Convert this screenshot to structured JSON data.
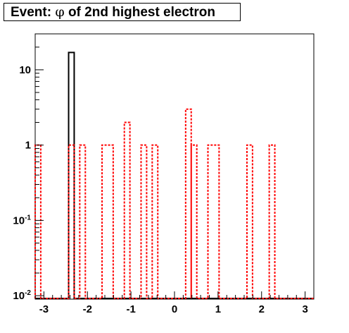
{
  "title": {
    "prefix": "Event: ",
    "symbol": "φ",
    "suffix": " of 2nd highest electron"
  },
  "chart_data": {
    "type": "histogram",
    "title": "Event: φ of 2nd highest electron",
    "xlabel": "",
    "ylabel": "",
    "xlim": [
      -3.2,
      3.2
    ],
    "ylim": [
      0.009,
      30
    ],
    "yscale": "log",
    "grid": false,
    "x_ticks": [
      {
        "v": -3,
        "label": "-3"
      },
      {
        "v": -2,
        "label": "-2"
      },
      {
        "v": -1,
        "label": "-1"
      },
      {
        "v": 0,
        "label": "0"
      },
      {
        "v": 1,
        "label": "1"
      },
      {
        "v": 2,
        "label": "2"
      },
      {
        "v": 3,
        "label": "3"
      }
    ],
    "y_ticks": [
      {
        "v": 10,
        "base": "10",
        "exp": ""
      },
      {
        "v": 1,
        "base": "1",
        "exp": ""
      },
      {
        "v": 0.1,
        "base": "10",
        "exp": "-1"
      },
      {
        "v": 0.01,
        "base": "10",
        "exp": "-2"
      }
    ],
    "bin_width": 0.128,
    "series": [
      {
        "style": "solid",
        "color": "#000000",
        "bins": [
          {
            "x0": -2.432,
            "x1": -2.304,
            "y": 17
          }
        ]
      },
      {
        "style": "dashed",
        "color": "#ff0000",
        "bins": [
          {
            "x0": -3.2,
            "x1": -3.072,
            "y": 1
          },
          {
            "x0": -2.432,
            "x1": -2.304,
            "y": 1
          },
          {
            "x0": -2.176,
            "x1": -2.048,
            "y": 1
          },
          {
            "x0": -1.664,
            "x1": -1.408,
            "y": 1
          },
          {
            "x0": -1.152,
            "x1": -1.024,
            "y": 2
          },
          {
            "x0": -0.768,
            "x1": -0.64,
            "y": 1
          },
          {
            "x0": -0.512,
            "x1": -0.384,
            "y": 1
          },
          {
            "x0": 0.256,
            "x1": 0.384,
            "y": 3
          },
          {
            "x0": 0.384,
            "x1": 0.512,
            "y": 1
          },
          {
            "x0": 0.768,
            "x1": 1.024,
            "y": 1
          },
          {
            "x0": 1.664,
            "x1": 1.792,
            "y": 1
          },
          {
            "x0": 2.176,
            "x1": 2.304,
            "y": 1
          }
        ]
      }
    ]
  }
}
